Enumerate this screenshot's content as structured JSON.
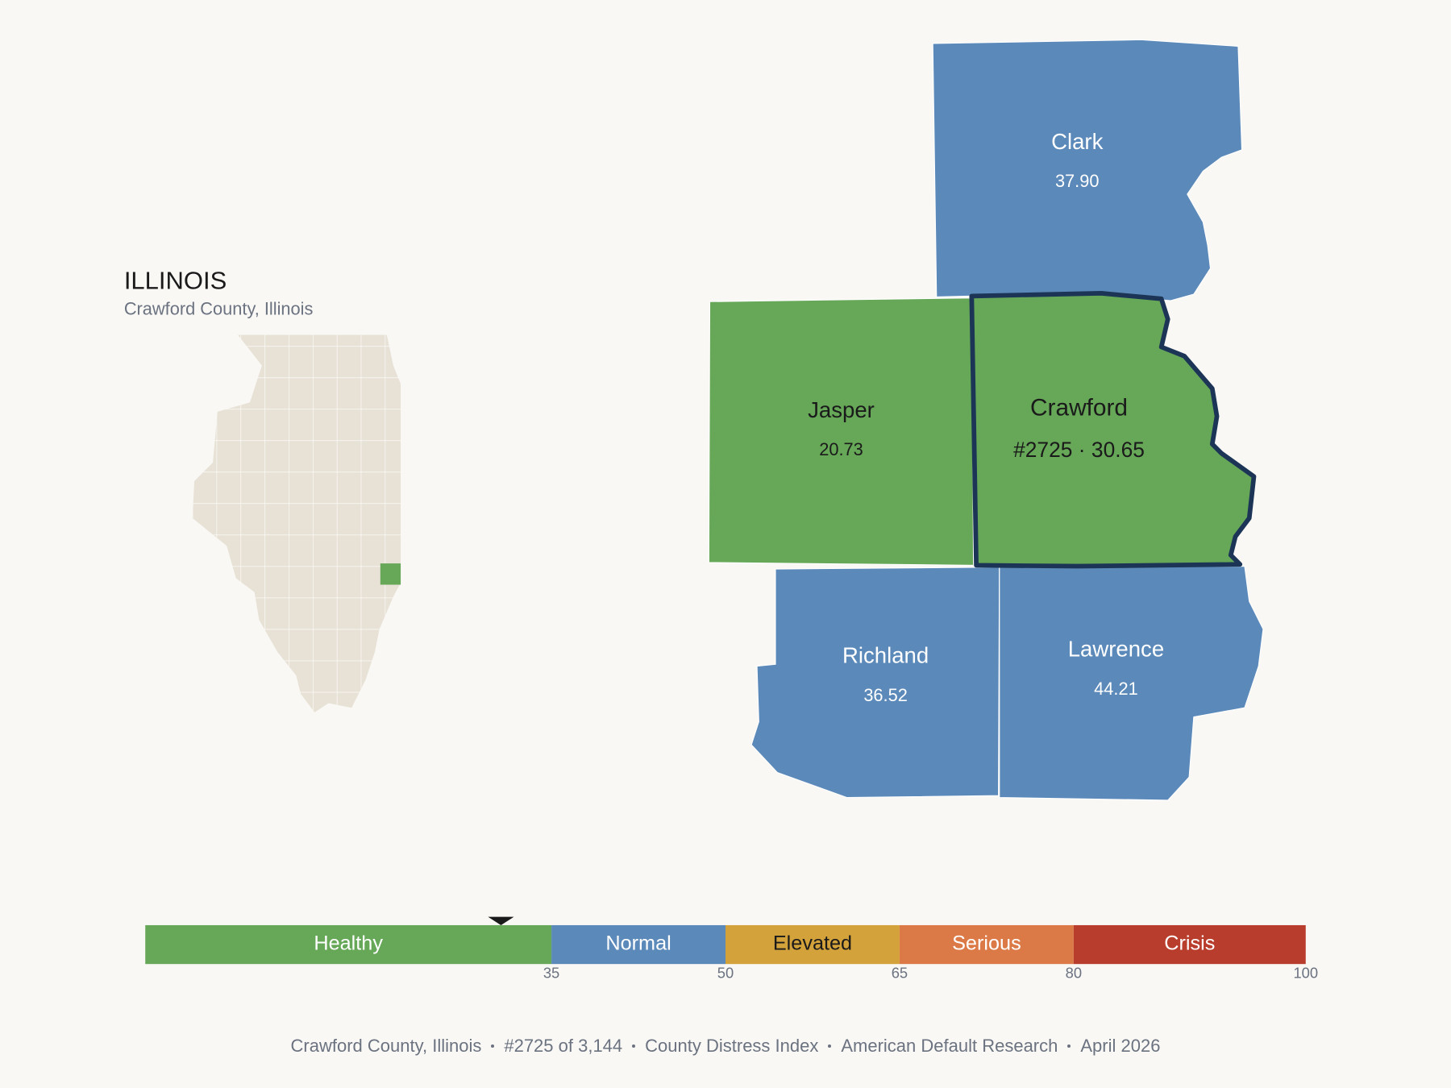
{
  "header": {
    "title": "ILLINOIS",
    "subtitle": "Crawford County, Illinois"
  },
  "counties": [
    {
      "name": "Clark",
      "score": {
        "value": 37.9,
        "label": "37.90"
      },
      "color": "#5b89b9",
      "text_color": "#ffffff",
      "selected": false
    },
    {
      "name": "Jasper",
      "score": {
        "value": 20.73,
        "label": "20.73"
      },
      "color": "#66a758",
      "text_color": "#1a1a1a",
      "selected": false
    },
    {
      "name": "Crawford",
      "score": {
        "value": 30.65,
        "label": "#2725 · 30.65"
      },
      "color": "#66a758",
      "text_color": "#1a1a1a",
      "selected": true,
      "outline": "#1c3556"
    },
    {
      "name": "Richland",
      "score": {
        "value": 36.52,
        "label": "36.52"
      },
      "color": "#5b89b9",
      "text_color": "#ffffff",
      "selected": false
    },
    {
      "name": "Lawrence",
      "score": {
        "value": 44.21,
        "label": "44.21"
      },
      "color": "#5b89b9",
      "text_color": "#ffffff",
      "selected": false
    }
  ],
  "scale": {
    "range": [
      0,
      100
    ],
    "ticks": [
      35,
      50,
      65,
      80,
      100
    ],
    "bands": [
      {
        "name": "Healthy",
        "range": [
          0,
          35
        ],
        "color": "#66a758",
        "text_color": "#ffffff"
      },
      {
        "name": "Normal",
        "range": [
          35,
          50
        ],
        "color": "#5b89b9",
        "text_color": "#ffffff"
      },
      {
        "name": "Elevated",
        "range": [
          50,
          65
        ],
        "color": "#d4a23a",
        "text_color": "#1a1a1a"
      },
      {
        "name": "Serious",
        "range": [
          65,
          80
        ],
        "color": "#dc7a47",
        "text_color": "#ffffff"
      },
      {
        "name": "Crisis",
        "range": [
          80,
          100
        ],
        "color": "#b93d2c",
        "text_color": "#ffffff"
      }
    ]
  },
  "footer": [
    "Crawford County, Illinois",
    "#2725 of 3,144",
    "County Distress Index",
    "American Default Research",
    "April 2026"
  ]
}
